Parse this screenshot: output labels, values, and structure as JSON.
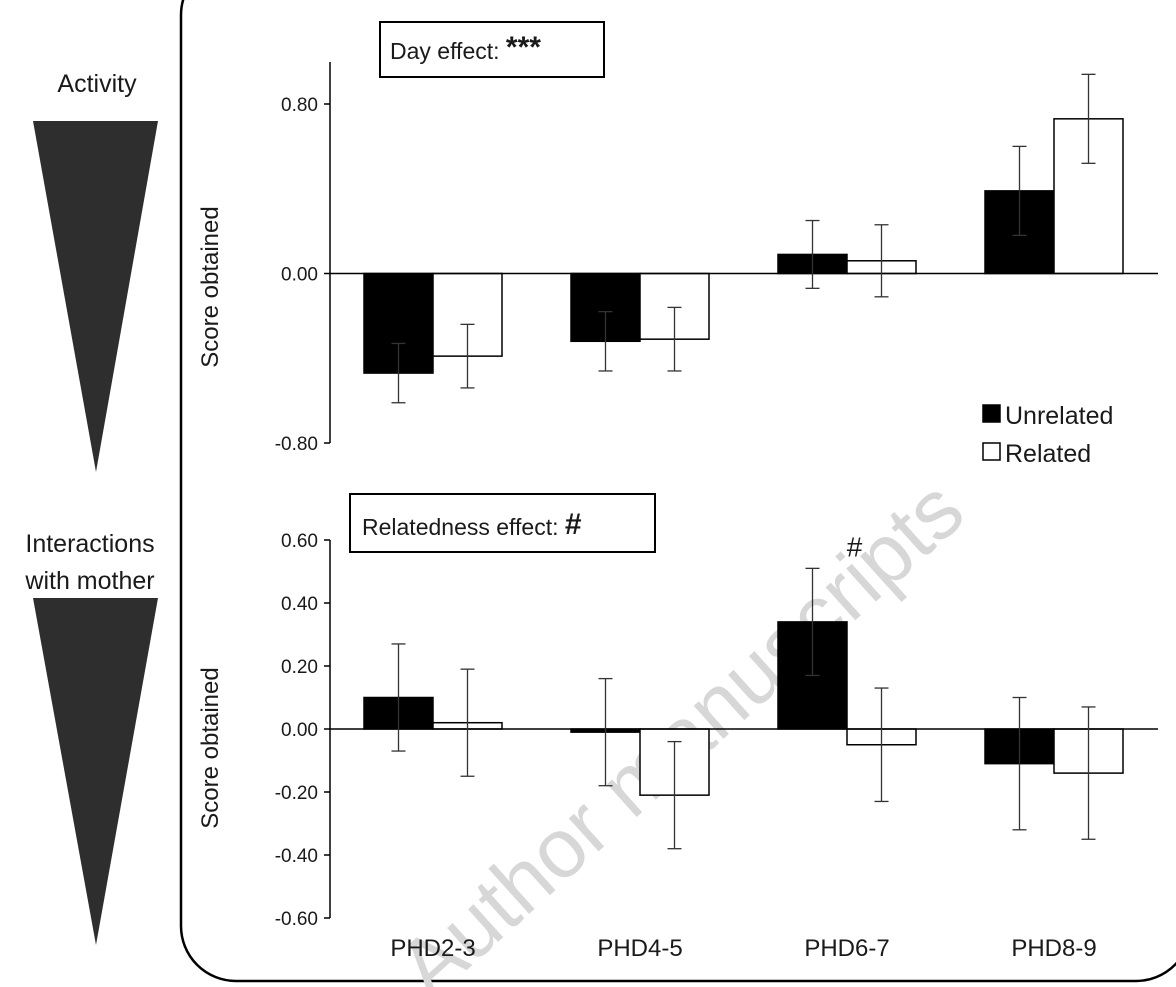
{
  "side_labels": {
    "activity": "Activity",
    "interactions_line1": "Interactions",
    "interactions_line2": "with mother"
  },
  "watermark": "Author manuscripts",
  "legend": {
    "unrelated": "Unrelated",
    "related": "Related"
  },
  "colors": {
    "unrelated": "#000000",
    "related": "#ffffff",
    "triangle": "#2e2e2e"
  },
  "chart_data": [
    {
      "type": "bar",
      "categories": [
        "PHD2-3",
        "PHD4-5",
        "PHD6-7",
        "PHD8-9"
      ],
      "series": [
        {
          "name": "Unrelated",
          "values": [
            -0.47,
            -0.32,
            0.09,
            0.39
          ],
          "errors": [
            0.14,
            0.14,
            0.16,
            0.21
          ]
        },
        {
          "name": "Related",
          "values": [
            -0.39,
            -0.31,
            0.06,
            0.73
          ],
          "errors": [
            0.15,
            0.15,
            0.17,
            0.21
          ]
        }
      ],
      "ylabel": "Score obtained",
      "ylim": [
        -0.8,
        0.8
      ],
      "yticks": [
        -0.8,
        0.0,
        0.8
      ],
      "ytick_labels": [
        "-0.80",
        "0.00",
        "0.80"
      ],
      "effect_label": "Day effect: ",
      "effect_sig": "***",
      "annotations": []
    },
    {
      "type": "bar",
      "categories": [
        "PHD2-3",
        "PHD4-5",
        "PHD6-7",
        "PHD8-9"
      ],
      "series": [
        {
          "name": "Unrelated",
          "values": [
            0.1,
            -0.01,
            0.34,
            -0.11
          ],
          "errors": [
            0.17,
            0.17,
            0.17,
            0.21
          ]
        },
        {
          "name": "Related",
          "values": [
            0.02,
            -0.21,
            -0.05,
            -0.14
          ],
          "errors": [
            0.17,
            0.17,
            0.18,
            0.21
          ]
        }
      ],
      "ylabel": "Score obtained",
      "ylim": [
        -0.6,
        0.6
      ],
      "yticks": [
        -0.6,
        -0.4,
        -0.2,
        0.0,
        0.2,
        0.4,
        0.6
      ],
      "ytick_labels": [
        "-0.60",
        "-0.40",
        "-0.20",
        "0.00",
        "0.20",
        "0.40",
        "0.60"
      ],
      "effect_label": "Relatedness effect: ",
      "effect_sig": "#",
      "annotations": [
        {
          "category": "PHD6-7",
          "text": "#"
        }
      ]
    }
  ]
}
